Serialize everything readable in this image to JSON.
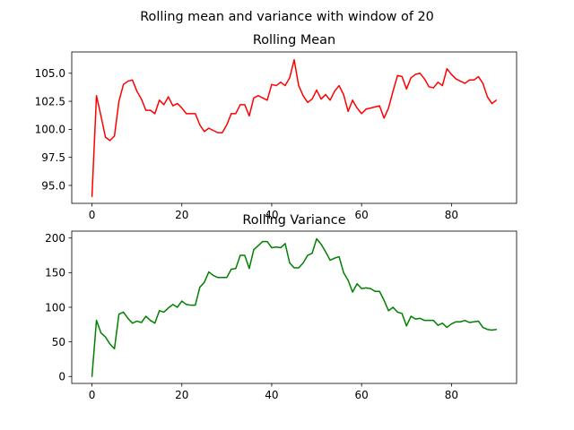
{
  "figure": {
    "suptitle": "Rolling mean and variance with window of 20"
  },
  "chart_data": [
    {
      "type": "line",
      "title": "Rolling Mean",
      "xlabel": "",
      "ylabel": "",
      "xlim": [
        -4.5,
        94.5
      ],
      "ylim": [
        93.4,
        106.9
      ],
      "xticks": [
        0,
        20,
        40,
        60,
        80
      ],
      "yticks": [
        95.0,
        97.5,
        100.0,
        102.5,
        105.0
      ],
      "ytick_labels": [
        "95.0",
        "97.5",
        "100.0",
        "102.5",
        "105.0"
      ],
      "grid": false,
      "color": "#ff0000",
      "x": [
        0,
        1,
        2,
        3,
        4,
        5,
        6,
        7,
        8,
        9,
        10,
        11,
        12,
        13,
        14,
        15,
        16,
        17,
        18,
        19,
        20,
        21,
        22,
        23,
        24,
        25,
        26,
        27,
        28,
        29,
        30,
        31,
        32,
        33,
        34,
        35,
        36,
        37,
        38,
        39,
        40,
        41,
        42,
        43,
        44,
        45,
        46,
        47,
        48,
        49,
        50,
        51,
        52,
        53,
        54,
        55,
        56,
        57,
        58,
        59,
        60,
        61,
        62,
        63,
        64,
        65,
        66,
        67,
        68,
        69,
        70,
        71,
        72,
        73,
        74,
        75,
        76,
        77,
        78,
        79,
        80,
        81,
        82,
        83,
        84,
        85,
        86,
        87,
        88,
        89,
        90
      ],
      "values": [
        94.0,
        103.0,
        101.2,
        99.3,
        99.0,
        99.4,
        102.5,
        104.0,
        104.3,
        104.4,
        103.4,
        102.7,
        101.7,
        101.7,
        101.4,
        102.6,
        102.2,
        102.9,
        102.1,
        102.3,
        101.9,
        101.4,
        101.4,
        101.4,
        100.4,
        99.8,
        100.1,
        99.9,
        99.7,
        99.7,
        100.4,
        101.4,
        101.4,
        102.2,
        102.2,
        101.2,
        102.8,
        103.0,
        102.8,
        102.6,
        104.0,
        103.9,
        104.2,
        103.9,
        104.6,
        106.2,
        103.9,
        103.0,
        102.4,
        102.7,
        103.5,
        102.7,
        103.1,
        102.6,
        103.4,
        103.9,
        103.1,
        101.6,
        102.6,
        101.9,
        101.4,
        101.8,
        101.9,
        102.0,
        102.1,
        101.0,
        101.9,
        103.4,
        104.8,
        104.7,
        103.6,
        104.6,
        104.9,
        105.0,
        104.5,
        103.8,
        103.7,
        104.2,
        103.9,
        105.4,
        104.9,
        104.5,
        104.3,
        104.1,
        104.4,
        104.4,
        104.7,
        104.1,
        102.9,
        102.3,
        102.6
      ]
    },
    {
      "type": "line",
      "title": "Rolling Variance",
      "xlabel": "",
      "ylabel": "",
      "xlim": [
        -4.5,
        94.5
      ],
      "ylim": [
        -10,
        210
      ],
      "xticks": [
        0,
        20,
        40,
        60,
        80
      ],
      "yticks": [
        0,
        50,
        100,
        150,
        200
      ],
      "ytick_labels": [
        "0",
        "50",
        "100",
        "150",
        "200"
      ],
      "grid": false,
      "color": "#008000",
      "x": [
        0,
        1,
        2,
        3,
        4,
        5,
        6,
        7,
        8,
        9,
        10,
        11,
        12,
        13,
        14,
        15,
        16,
        17,
        18,
        19,
        20,
        21,
        22,
        23,
        24,
        25,
        26,
        27,
        28,
        29,
        30,
        31,
        32,
        33,
        34,
        35,
        36,
        37,
        38,
        39,
        40,
        41,
        42,
        43,
        44,
        45,
        46,
        47,
        48,
        49,
        50,
        51,
        52,
        53,
        54,
        55,
        56,
        57,
        58,
        59,
        60,
        61,
        62,
        63,
        64,
        65,
        66,
        67,
        68,
        69,
        70,
        71,
        72,
        73,
        74,
        75,
        76,
        77,
        78,
        79,
        80,
        81,
        82,
        83,
        84,
        85,
        86,
        87,
        88,
        89,
        90
      ],
      "values": [
        0,
        81,
        63,
        57,
        47,
        40,
        90,
        93,
        84,
        77,
        80,
        78,
        87,
        81,
        77,
        95,
        93,
        99,
        104,
        100,
        109,
        104,
        103,
        103,
        129,
        136,
        151,
        146,
        143,
        143,
        143,
        155,
        156,
        175,
        175,
        156,
        183,
        189,
        195,
        195,
        186,
        187,
        186,
        192,
        164,
        157,
        157,
        164,
        175,
        178,
        199,
        191,
        180,
        168,
        171,
        173,
        150,
        139,
        122,
        134,
        127,
        128,
        127,
        123,
        123,
        110,
        95,
        100,
        93,
        91,
        73,
        87,
        83,
        84,
        81,
        81,
        81,
        74,
        77,
        71,
        76,
        79,
        79,
        81,
        78,
        79,
        80,
        71,
        68,
        67,
        68
      ]
    }
  ]
}
